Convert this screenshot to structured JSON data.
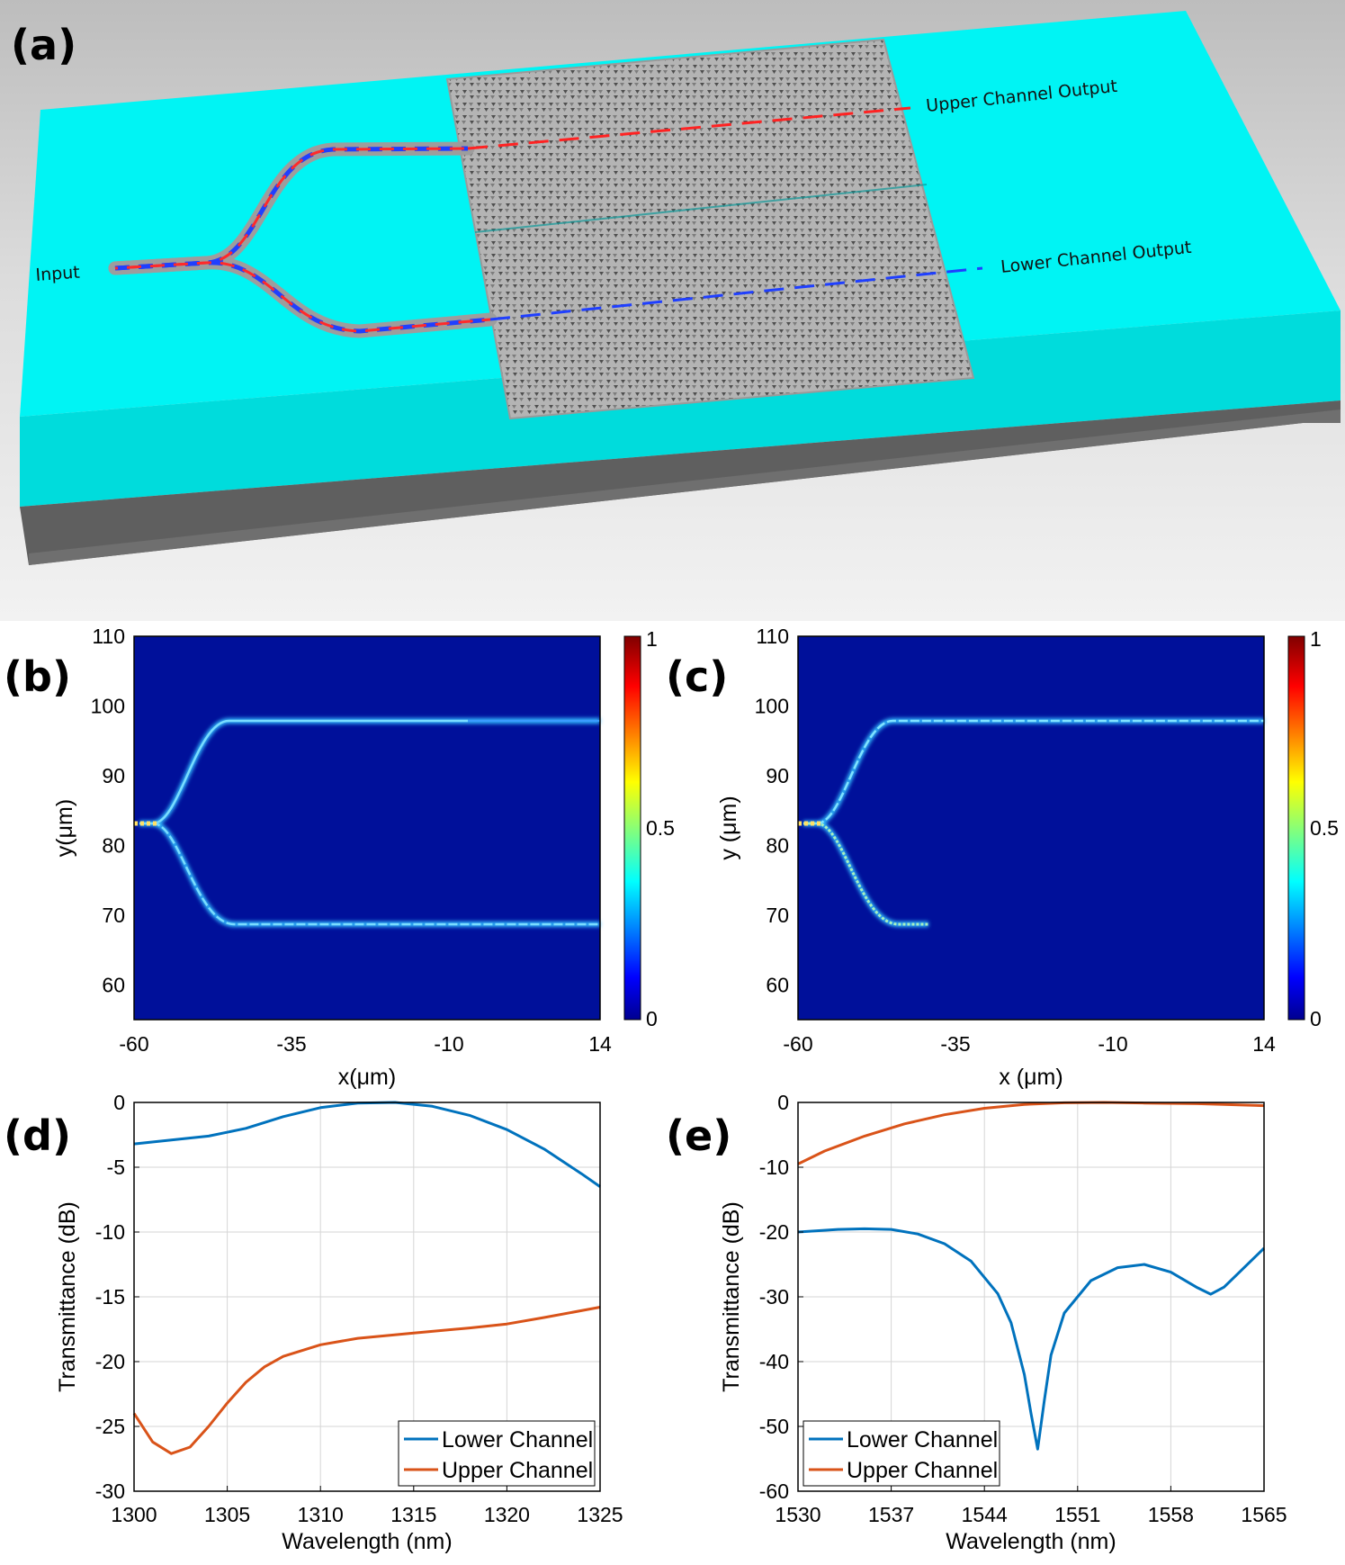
{
  "panels": {
    "a": {
      "label": "(a)",
      "input_label": "Input",
      "upper_label": "Upper Channel Output",
      "lower_label": "Lower Channel Output"
    },
    "b": {
      "label": "(b)",
      "xlabel": "x(μm)",
      "ylabel": "y(μm)",
      "x_ticks": [
        "-60",
        "-35",
        "-10",
        "14"
      ],
      "y_ticks": [
        "110",
        "100",
        "90",
        "80",
        "70",
        "60"
      ],
      "cbar_ticks": [
        "1",
        "0.5",
        "0"
      ]
    },
    "c": {
      "label": "(c)",
      "xlabel": "x (μm)",
      "ylabel": "y (μm)",
      "x_ticks": [
        "-60",
        "-35",
        "-10",
        "14"
      ],
      "y_ticks": [
        "110",
        "100",
        "90",
        "80",
        "70",
        "60"
      ],
      "cbar_ticks": [
        "1",
        "0.5",
        "0"
      ]
    },
    "d": {
      "label": "(d)"
    },
    "e": {
      "label": "(e)"
    }
  },
  "colors": {
    "lower": "#0072BD",
    "upper": "#D95319",
    "substrate": "#00F4F4",
    "field_bg": "#00109A"
  },
  "chart_data": [
    {
      "id": "d",
      "type": "line",
      "xlabel": "Wavelength (nm)",
      "ylabel": "Transmittance (dB)",
      "xlim": [
        1300,
        1325
      ],
      "ylim": [
        -30,
        0
      ],
      "xticks": [
        1300,
        1305,
        1310,
        1315,
        1320,
        1325
      ],
      "yticks": [
        0,
        -5,
        -10,
        -15,
        -20,
        -25,
        -30
      ],
      "legend_position": "bottom-right",
      "series": [
        {
          "name": "Lower Channel",
          "color": "#0072BD",
          "x": [
            1300,
            1302,
            1304,
            1306,
            1308,
            1310,
            1312,
            1314,
            1316,
            1318,
            1320,
            1322,
            1324,
            1325
          ],
          "y": [
            -3.2,
            -2.9,
            -2.6,
            -2.0,
            -1.1,
            -0.4,
            -0.05,
            0,
            -0.3,
            -1.0,
            -2.1,
            -3.6,
            -5.5,
            -6.5
          ]
        },
        {
          "name": "Upper Channel",
          "color": "#D95319",
          "x": [
            1300,
            1301,
            1302,
            1303,
            1304,
            1305,
            1306,
            1307,
            1308,
            1310,
            1312,
            1315,
            1318,
            1320,
            1322,
            1325
          ],
          "y": [
            -24,
            -26.2,
            -27.1,
            -26.6,
            -25.0,
            -23.2,
            -21.6,
            -20.4,
            -19.6,
            -18.7,
            -18.2,
            -17.8,
            -17.4,
            -17.1,
            -16.6,
            -15.8
          ]
        }
      ]
    },
    {
      "id": "e",
      "type": "line",
      "xlabel": "Wavelength (nm)",
      "ylabel": "Transmittance (dB)",
      "xlim": [
        1530,
        1565
      ],
      "ylim": [
        -60,
        0
      ],
      "xticks": [
        1530,
        1537,
        1544,
        1551,
        1558,
        1565
      ],
      "yticks": [
        0,
        -10,
        -20,
        -30,
        -40,
        -50,
        -60
      ],
      "legend_position": "bottom-left",
      "series": [
        {
          "name": "Lower Channel",
          "color": "#0072BD",
          "x": [
            1530,
            1533,
            1535,
            1537,
            1539,
            1541,
            1543,
            1545,
            1546,
            1547,
            1547.5,
            1548,
            1548.5,
            1549,
            1550,
            1552,
            1554,
            1556,
            1558,
            1560,
            1561,
            1562,
            1563,
            1565
          ],
          "y": [
            -20,
            -19.6,
            -19.5,
            -19.6,
            -20.3,
            -21.8,
            -24.5,
            -29.5,
            -34,
            -42,
            -48,
            -53.5,
            -46,
            -39,
            -32.5,
            -27.5,
            -25.5,
            -25,
            -26.2,
            -28.6,
            -29.6,
            -28.5,
            -26.5,
            -22.5
          ]
        },
        {
          "name": "Upper Channel",
          "color": "#D95319",
          "x": [
            1530,
            1532,
            1535,
            1538,
            1541,
            1544,
            1547,
            1550,
            1553,
            1556,
            1560,
            1565
          ],
          "y": [
            -9.5,
            -7.5,
            -5.2,
            -3.3,
            -1.9,
            -0.9,
            -0.3,
            -0.05,
            0,
            -0.1,
            -0.2,
            -0.5
          ]
        }
      ]
    }
  ]
}
